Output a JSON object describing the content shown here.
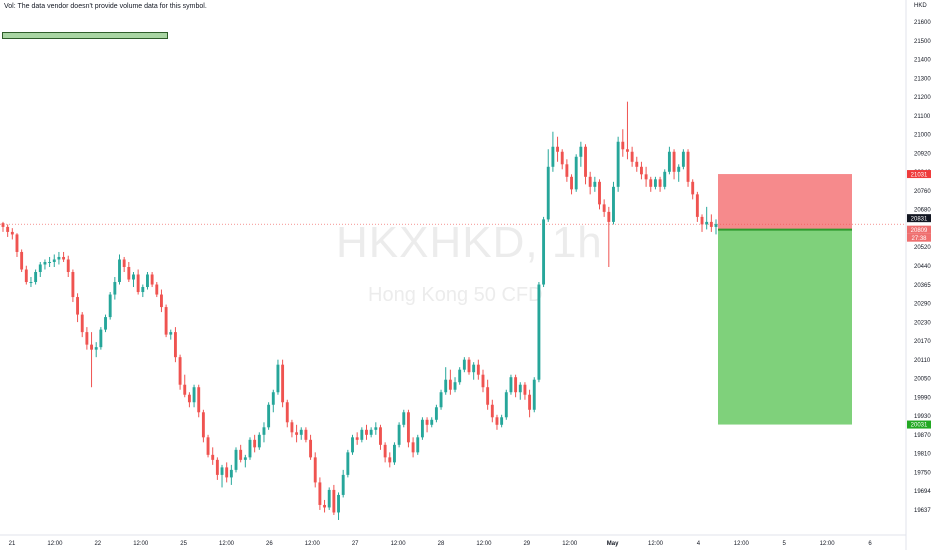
{
  "header": {
    "volume_note": "Vol: The data vendor doesn't provide volume data for this symbol.",
    "currency": "HKD"
  },
  "watermark": {
    "symbol": "HKXHKD, 1h",
    "description": "Hong Kong 50 CFD"
  },
  "colors": {
    "up": "#26a69a",
    "down": "#ef5350",
    "stop_zone": "#f68a8c",
    "target_zone": "#7fd17b",
    "entry_line": "#2e9a2e",
    "price_line": "#ef5350"
  },
  "chart_data": {
    "type": "candlestick",
    "symbol": "HKXHKD",
    "timeframe": "1h",
    "ylim": [
      19610,
      21670
    ],
    "y_ticks": [
      "21600",
      "21500",
      "21400",
      "21300",
      "21200",
      "21100",
      "21000",
      "20920",
      "20840",
      "20760",
      "20680",
      "20600",
      "20520",
      "20440",
      "20365",
      "20290",
      "20230",
      "20170",
      "20110",
      "20050",
      "19990",
      "19930",
      "19870",
      "19810",
      "19750",
      "19694",
      "19637"
    ],
    "x_ticks": [
      {
        "label": "21",
        "bold": false
      },
      {
        "label": "12:00",
        "bold": false
      },
      {
        "label": "22",
        "bold": false
      },
      {
        "label": "12:00",
        "bold": false
      },
      {
        "label": "25",
        "bold": false
      },
      {
        "label": "12:00",
        "bold": false
      },
      {
        "label": "26",
        "bold": false
      },
      {
        "label": "12:00",
        "bold": false
      },
      {
        "label": "27",
        "bold": false
      },
      {
        "label": "12:00",
        "bold": false
      },
      {
        "label": "28",
        "bold": false
      },
      {
        "label": "12:00",
        "bold": false
      },
      {
        "label": "29",
        "bold": false
      },
      {
        "label": "12:00",
        "bold": false
      },
      {
        "label": "May",
        "bold": true
      },
      {
        "label": "12:00",
        "bold": false
      },
      {
        "label": "4",
        "bold": false
      },
      {
        "label": "12:00",
        "bold": false
      },
      {
        "label": "5",
        "bold": false
      },
      {
        "label": "12:00",
        "bold": false
      },
      {
        "label": "6",
        "bold": false
      }
    ],
    "price_labels": {
      "stop": "21031",
      "current": "20831",
      "entry": "20809",
      "countdown": "27:38",
      "target": "20031"
    },
    "position": {
      "side": "short",
      "stop": 21031,
      "entry": 20809,
      "target": 20031
    },
    "candles": [
      [
        20835,
        20840,
        20800,
        20820
      ],
      [
        20820,
        20830,
        20780,
        20800
      ],
      [
        20800,
        20815,
        20770,
        20790
      ],
      [
        20790,
        20795,
        20700,
        20720
      ],
      [
        20720,
        20730,
        20640,
        20650
      ],
      [
        20650,
        20665,
        20590,
        20600
      ],
      [
        20600,
        20620,
        20580,
        20600
      ],
      [
        20600,
        20650,
        20590,
        20640
      ],
      [
        20640,
        20680,
        20620,
        20670
      ],
      [
        20670,
        20690,
        20650,
        20680
      ],
      [
        20680,
        20700,
        20660,
        20680
      ],
      [
        20680,
        20710,
        20660,
        20690
      ],
      [
        20690,
        20720,
        20670,
        20700
      ],
      [
        20700,
        20720,
        20680,
        20690
      ],
      [
        20690,
        20705,
        20620,
        20640
      ],
      [
        20640,
        20650,
        20520,
        20540
      ],
      [
        20540,
        20555,
        20440,
        20470
      ],
      [
        20470,
        20480,
        20380,
        20400
      ],
      [
        20400,
        20420,
        20330,
        20350
      ],
      [
        20350,
        20400,
        20180,
        20330
      ],
      [
        20330,
        20360,
        20300,
        20340
      ],
      [
        20340,
        20420,
        20330,
        20410
      ],
      [
        20410,
        20470,
        20400,
        20460
      ],
      [
        20460,
        20560,
        20450,
        20550
      ],
      [
        20550,
        20620,
        20530,
        20600
      ],
      [
        20600,
        20710,
        20590,
        20690
      ],
      [
        20690,
        20700,
        20640,
        20660
      ],
      [
        20660,
        20680,
        20600,
        20610
      ],
      [
        20610,
        20640,
        20580,
        20630
      ],
      [
        20630,
        20650,
        20550,
        20560
      ],
      [
        20560,
        20590,
        20540,
        20580
      ],
      [
        20580,
        20640,
        20570,
        20630
      ],
      [
        20630,
        20640,
        20580,
        20590
      ],
      [
        20590,
        20600,
        20540,
        20550
      ],
      [
        20550,
        20570,
        20480,
        20500
      ],
      [
        20500,
        20510,
        20380,
        20390
      ],
      [
        20390,
        20410,
        20370,
        20400
      ],
      [
        20400,
        20420,
        20280,
        20300
      ],
      [
        20300,
        20310,
        20170,
        20190
      ],
      [
        20190,
        20230,
        20140,
        20150
      ],
      [
        20150,
        20160,
        20100,
        20120
      ],
      [
        20120,
        20190,
        20100,
        20180
      ],
      [
        20180,
        20190,
        20060,
        20080
      ],
      [
        20080,
        20090,
        19960,
        19980
      ],
      [
        19980,
        19990,
        19900,
        19910
      ],
      [
        19910,
        19940,
        19870,
        19890
      ],
      [
        19890,
        19900,
        19810,
        19830
      ],
      [
        19830,
        19870,
        19780,
        19860
      ],
      [
        19860,
        19880,
        19800,
        19820
      ],
      [
        19820,
        19870,
        19790,
        19850
      ],
      [
        19850,
        19940,
        19840,
        19930
      ],
      [
        19930,
        19950,
        19880,
        19890
      ],
      [
        19890,
        19910,
        19860,
        19900
      ],
      [
        19900,
        19980,
        19890,
        19970
      ],
      [
        19970,
        19990,
        19920,
        19940
      ],
      [
        19940,
        20000,
        19930,
        19990
      ],
      [
        19990,
        20040,
        19960,
        20020
      ],
      [
        20020,
        20120,
        20010,
        20110
      ],
      [
        20110,
        20170,
        20080,
        20160
      ],
      [
        20160,
        20290,
        20150,
        20270
      ],
      [
        20270,
        20290,
        20100,
        20120
      ],
      [
        20120,
        20130,
        20020,
        20040
      ],
      [
        20040,
        20050,
        19980,
        20000
      ],
      [
        20000,
        20030,
        19960,
        19990
      ],
      [
        19990,
        20020,
        19970,
        20010
      ],
      [
        20010,
        20020,
        19960,
        19970
      ],
      [
        19970,
        19990,
        19890,
        19900
      ],
      [
        19900,
        19920,
        19780,
        19800
      ],
      [
        19800,
        19820,
        19690,
        19710
      ],
      [
        19710,
        19730,
        19680,
        19700
      ],
      [
        19700,
        19780,
        19690,
        19770
      ],
      [
        19770,
        19790,
        19670,
        19680
      ],
      [
        19680,
        19760,
        19650,
        19750
      ],
      [
        19750,
        19850,
        19740,
        19830
      ],
      [
        19830,
        19930,
        19820,
        19920
      ],
      [
        19920,
        19990,
        19910,
        19980
      ],
      [
        19980,
        20000,
        19950,
        19970
      ],
      [
        19970,
        20020,
        19960,
        20010
      ],
      [
        20010,
        20030,
        19970,
        19990
      ],
      [
        19990,
        20020,
        19980,
        20010
      ],
      [
        20010,
        20040,
        19990,
        20020
      ],
      [
        20020,
        20030,
        19930,
        19950
      ],
      [
        19950,
        19960,
        19880,
        19900
      ],
      [
        19900,
        19920,
        19860,
        19880
      ],
      [
        19880,
        19960,
        19870,
        19950
      ],
      [
        19950,
        20040,
        19940,
        20030
      ],
      [
        20030,
        20090,
        20020,
        20080
      ],
      [
        20080,
        20090,
        19940,
        19960
      ],
      [
        19960,
        19980,
        19900,
        19920
      ],
      [
        19920,
        19990,
        19910,
        19980
      ],
      [
        19980,
        20060,
        19970,
        20050
      ],
      [
        20050,
        20060,
        20000,
        20030
      ],
      [
        20030,
        20060,
        20020,
        20050
      ],
      [
        20050,
        20110,
        20040,
        20100
      ],
      [
        20100,
        20170,
        20090,
        20160
      ],
      [
        20160,
        20260,
        20150,
        20210
      ],
      [
        20210,
        20250,
        20150,
        20170
      ],
      [
        20170,
        20220,
        20160,
        20200
      ],
      [
        20200,
        20260,
        20190,
        20250
      ],
      [
        20250,
        20300,
        20240,
        20290
      ],
      [
        20290,
        20300,
        20230,
        20240
      ],
      [
        20240,
        20280,
        20210,
        20270
      ],
      [
        20270,
        20290,
        20210,
        20230
      ],
      [
        20230,
        20250,
        20160,
        20180
      ],
      [
        20180,
        20210,
        20090,
        20110
      ],
      [
        20110,
        20130,
        20040,
        20060
      ],
      [
        20060,
        20070,
        20010,
        20030
      ],
      [
        20030,
        20070,
        20020,
        20060
      ],
      [
        20060,
        20170,
        20050,
        20160
      ],
      [
        20160,
        20230,
        20150,
        20220
      ],
      [
        20220,
        20230,
        20140,
        20160
      ],
      [
        20160,
        20200,
        20130,
        20190
      ],
      [
        20190,
        20200,
        20130,
        20150
      ],
      [
        20150,
        20170,
        20060,
        20090
      ],
      [
        20090,
        20220,
        20080,
        20210
      ],
      [
        20210,
        20600,
        20200,
        20590
      ],
      [
        20590,
        20860,
        20580,
        20850
      ],
      [
        20850,
        21130,
        20840,
        21060
      ],
      [
        21060,
        21200,
        21040,
        21140
      ],
      [
        21140,
        21180,
        21080,
        21120
      ],
      [
        21120,
        21130,
        21050,
        21070
      ],
      [
        21070,
        21090,
        21000,
        21020
      ],
      [
        21020,
        21030,
        20950,
        20970
      ],
      [
        20970,
        21110,
        20960,
        21100
      ],
      [
        21100,
        21160,
        21060,
        21140
      ],
      [
        21140,
        21150,
        20990,
        21020
      ],
      [
        21020,
        21040,
        20950,
        20980
      ],
      [
        20980,
        21020,
        20960,
        21000
      ],
      [
        21000,
        21010,
        20890,
        20910
      ],
      [
        20910,
        20930,
        20860,
        20880
      ],
      [
        20880,
        20900,
        20660,
        20840
      ],
      [
        20840,
        21000,
        20830,
        20980
      ],
      [
        20980,
        21180,
        20960,
        21160
      ],
      [
        21160,
        21210,
        21100,
        21130
      ],
      [
        21130,
        21320,
        21090,
        21120
      ],
      [
        21120,
        21140,
        21060,
        21080
      ],
      [
        21080,
        21100,
        21040,
        21060
      ],
      [
        21060,
        21080,
        21010,
        21030
      ],
      [
        21030,
        21060,
        20980,
        21010
      ],
      [
        21010,
        21020,
        20960,
        20980
      ],
      [
        20980,
        21020,
        20970,
        21010
      ],
      [
        21010,
        21020,
        20960,
        20980
      ],
      [
        20980,
        21050,
        20970,
        21040
      ],
      [
        21040,
        21140,
        21030,
        21120
      ],
      [
        21120,
        21130,
        21010,
        21040
      ],
      [
        21040,
        21070,
        21000,
        21060
      ],
      [
        21060,
        21130,
        21050,
        21120
      ],
      [
        21120,
        21130,
        20980,
        21000
      ],
      [
        21000,
        21010,
        20930,
        20950
      ],
      [
        20950,
        20960,
        20840,
        20860
      ],
      [
        20860,
        20870,
        20800,
        20830
      ],
      [
        20830,
        20900,
        20810,
        20840
      ],
      [
        20840,
        20870,
        20800,
        20820
      ],
      [
        20820,
        20850,
        20790,
        20831
      ]
    ]
  }
}
